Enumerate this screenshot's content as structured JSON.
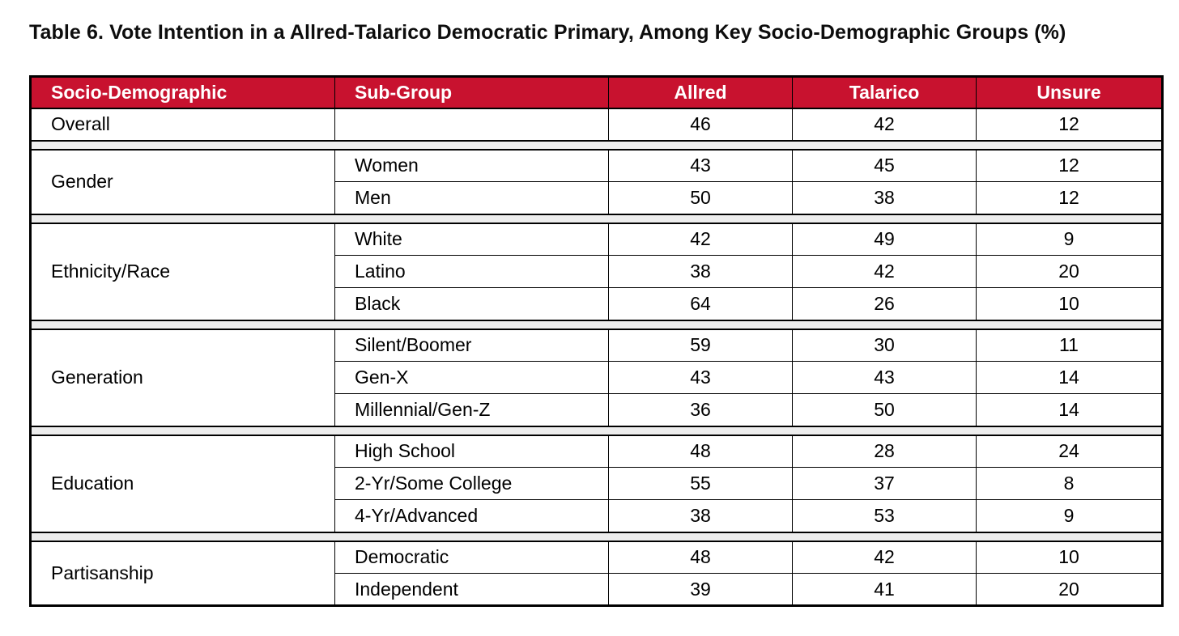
{
  "title": "Table 6. Vote Intention in a Allred-Talarico Democratic Primary, Among Key Socio-Demographic Groups (%)",
  "colors": {
    "header_bg": "#C8122F",
    "header_text": "#FFFFFF",
    "spacer_bg": "#EDEDED",
    "border": "#000000",
    "body_text": "#000000"
  },
  "table": {
    "columns": [
      "Socio-Demographic",
      "Sub-Group",
      "Allred",
      "Talarico",
      "Unsure"
    ],
    "sections": [
      {
        "label": "Overall",
        "rows": [
          {
            "sub": "",
            "allred": "46",
            "talarico": "42",
            "unsure": "12"
          }
        ]
      },
      {
        "label": "Gender",
        "rows": [
          {
            "sub": "Women",
            "allred": "43",
            "talarico": "45",
            "unsure": "12"
          },
          {
            "sub": "Men",
            "allred": "50",
            "talarico": "38",
            "unsure": "12"
          }
        ]
      },
      {
        "label": "Ethnicity/Race",
        "rows": [
          {
            "sub": "White",
            "allred": "42",
            "talarico": "49",
            "unsure": "9"
          },
          {
            "sub": "Latino",
            "allred": "38",
            "talarico": "42",
            "unsure": "20"
          },
          {
            "sub": "Black",
            "allred": "64",
            "talarico": "26",
            "unsure": "10"
          }
        ]
      },
      {
        "label": "Generation",
        "rows": [
          {
            "sub": "Silent/Boomer",
            "allred": "59",
            "talarico": "30",
            "unsure": "11"
          },
          {
            "sub": "Gen-X",
            "allred": "43",
            "talarico": "43",
            "unsure": "14"
          },
          {
            "sub": "Millennial/Gen-Z",
            "allred": "36",
            "talarico": "50",
            "unsure": "14"
          }
        ]
      },
      {
        "label": "Education",
        "rows": [
          {
            "sub": "High School",
            "allred": "48",
            "talarico": "28",
            "unsure": "24"
          },
          {
            "sub": "2-Yr/Some College",
            "allred": "55",
            "talarico": "37",
            "unsure": "8"
          },
          {
            "sub": "4-Yr/Advanced",
            "allred": "38",
            "talarico": "53",
            "unsure": "9"
          }
        ]
      },
      {
        "label": "Partisanship",
        "rows": [
          {
            "sub": "Democratic",
            "allred": "48",
            "talarico": "42",
            "unsure": "10"
          },
          {
            "sub": "Independent",
            "allred": "39",
            "talarico": "41",
            "unsure": "20"
          }
        ]
      }
    ]
  },
  "chart_data": {
    "type": "table",
    "title": "Table 6. Vote Intention in a Allred-Talarico Democratic Primary, Among Key Socio-Demographic Groups (%)",
    "columns": [
      "Socio-Demographic",
      "Sub-Group",
      "Allred",
      "Talarico",
      "Unsure"
    ],
    "rows": [
      [
        "Overall",
        "",
        46,
        42,
        12
      ],
      [
        "Gender",
        "Women",
        43,
        45,
        12
      ],
      [
        "Gender",
        "Men",
        50,
        38,
        12
      ],
      [
        "Ethnicity/Race",
        "White",
        42,
        49,
        9
      ],
      [
        "Ethnicity/Race",
        "Latino",
        38,
        42,
        20
      ],
      [
        "Ethnicity/Race",
        "Black",
        64,
        26,
        10
      ],
      [
        "Generation",
        "Silent/Boomer",
        59,
        30,
        11
      ],
      [
        "Generation",
        "Gen-X",
        43,
        43,
        14
      ],
      [
        "Generation",
        "Millennial/Gen-Z",
        36,
        50,
        14
      ],
      [
        "Education",
        "High School",
        48,
        28,
        24
      ],
      [
        "Education",
        "2-Yr/Some College",
        55,
        37,
        8
      ],
      [
        "Education",
        "4-Yr/Advanced",
        38,
        53,
        9
      ],
      [
        "Partisanship",
        "Democratic",
        48,
        42,
        10
      ],
      [
        "Partisanship",
        "Independent",
        39,
        41,
        20
      ]
    ],
    "units": "percent",
    "layout": "grouped rows with section spacer bands; numeric columns centered"
  }
}
